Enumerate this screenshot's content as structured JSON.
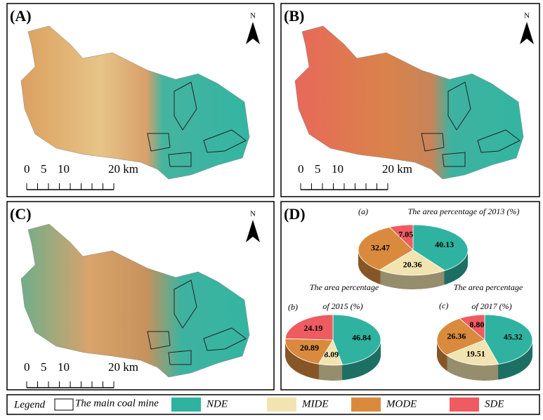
{
  "panels": [
    {
      "label": "(A)",
      "north": "N",
      "scale": [
        "0",
        "5",
        "10",
        "20 km"
      ]
    },
    {
      "label": "(B)",
      "north": "N",
      "scale": [
        "0",
        "5",
        "10",
        "20 km"
      ]
    },
    {
      "label": "(C)",
      "north": "N",
      "scale": [
        "0",
        "5",
        "10",
        "20 km"
      ]
    },
    {
      "label": "(D)"
    }
  ],
  "legend": {
    "title": "Legend",
    "mine": "The main coal mine"
  },
  "chart_data": [
    {
      "type": "pie",
      "label": "(a)",
      "title": [
        "The area percentage of 2013 (%)"
      ],
      "categories": [
        "NDE",
        "MIDE",
        "MODE",
        "SDE"
      ],
      "colors": [
        "#2fb3a0",
        "#f2e4b0",
        "#d98a3d",
        "#ee5b60"
      ],
      "values": [
        40.13,
        20.36,
        32.47,
        7.05
      ]
    },
    {
      "type": "pie",
      "label": "(b)",
      "title": [
        "The area percentage",
        "of 2015 (%)"
      ],
      "categories": [
        "NDE",
        "MIDE",
        "MODE",
        "SDE"
      ],
      "colors": [
        "#2fb3a0",
        "#f2e4b0",
        "#d98a3d",
        "#ee5b60"
      ],
      "values": [
        46.84,
        8.09,
        20.89,
        24.19
      ]
    },
    {
      "type": "pie",
      "label": "(c)",
      "title": [
        "The area percentage",
        "of 2017 (%)"
      ],
      "categories": [
        "NDE",
        "MIDE",
        "MODE",
        "SDE"
      ],
      "colors": [
        "#2fb3a0",
        "#f2e4b0",
        "#d98a3d",
        "#ee5b60"
      ],
      "values": [
        45.32,
        19.51,
        26.36,
        8.8
      ],
      "value_labels": [
        "45.32",
        "19.51",
        "26.36",
        "8.80"
      ]
    }
  ]
}
